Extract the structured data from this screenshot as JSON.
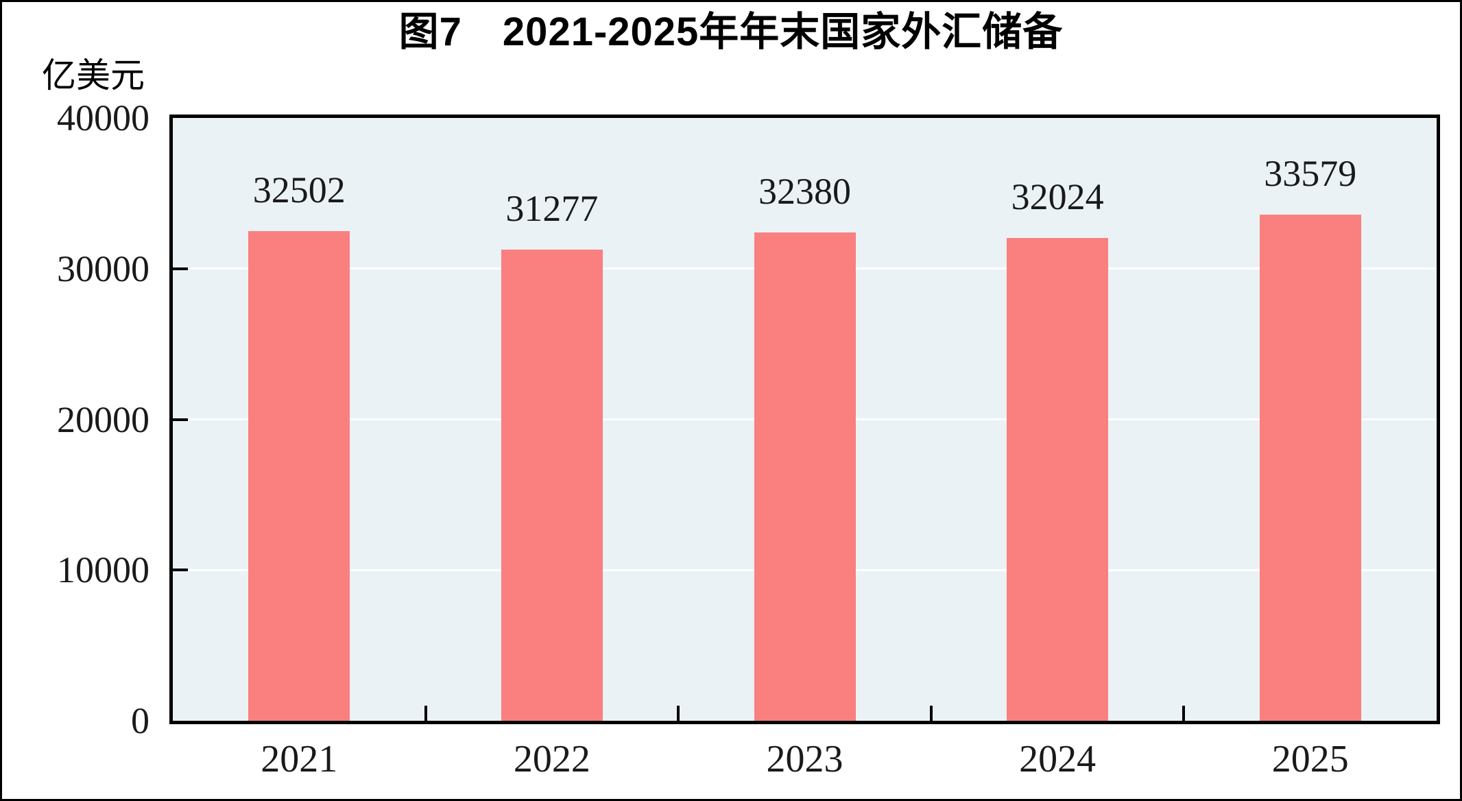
{
  "page": {
    "background": "#ffffff",
    "frame_color": "#000000"
  },
  "title": {
    "text": "图7　2021-2025年年末国家外汇储备"
  },
  "y_axis": {
    "unit_label": "亿美元",
    "tick_labels": [
      "40000",
      "30000",
      "20000",
      "10000",
      "0"
    ],
    "min": 0,
    "max": 40000,
    "tick_interval": 10000
  },
  "x_axis": {
    "tick_labels": [
      "2021",
      "2022",
      "2023",
      "2024",
      "2025"
    ]
  },
  "chart_data": {
    "type": "bar",
    "title": "图7　2021-2025年年末国家外汇储备",
    "categories": [
      "2021",
      "2022",
      "2023",
      "2024",
      "2025"
    ],
    "values": [
      32502,
      31277,
      32380,
      32024,
      33579
    ],
    "data_labels": [
      "32502",
      "31277",
      "32380",
      "32024",
      "33579"
    ],
    "xlabel": "",
    "ylabel": "亿美元",
    "ylim": [
      0,
      40000
    ],
    "grid": true,
    "gridline_values": [
      10000,
      20000,
      30000
    ],
    "legend_position": "none",
    "bar_color": "#FA7F7F",
    "plot_background": "#EAF2F5",
    "gridline_color": "#FFFFFF",
    "axis_color": "#000000",
    "text_color": "#1a1a1a"
  }
}
